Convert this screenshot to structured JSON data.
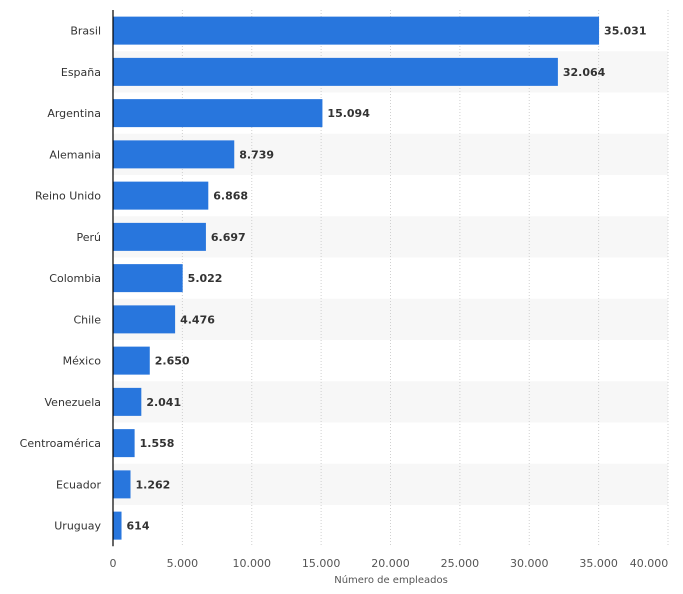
{
  "chart_data": {
    "type": "bar",
    "orientation": "horizontal",
    "categories": [
      "Brasil",
      "España",
      "Argentina",
      "Alemania",
      "Reino Unido",
      "Perú",
      "Colombia",
      "Chile",
      "México",
      "Venezuela",
      "Centroamérica",
      "Ecuador",
      "Uruguay"
    ],
    "values": [
      35031,
      32064,
      15094,
      8739,
      6868,
      6697,
      5022,
      4476,
      2650,
      2041,
      1558,
      1262,
      614
    ],
    "value_labels": [
      "35.031",
      "32.064",
      "15.094",
      "8.739",
      "6.868",
      "6.697",
      "5.022",
      "4.476",
      "2.650",
      "2.041",
      "1.558",
      "1.262",
      "614"
    ],
    "xlabel": "Número de empleados",
    "ylabel": "",
    "xlim": [
      0,
      40000
    ],
    "x_ticks": [
      0,
      5000,
      10000,
      15000,
      20000,
      25000,
      30000,
      35000,
      40000
    ],
    "x_tick_labels": [
      "0",
      "5.000",
      "10.000",
      "15.000",
      "20.000",
      "25.000",
      "30.000",
      "35.000",
      "40.000"
    ],
    "grid": "vertical dotted",
    "colors": {
      "bar": "#2876dd",
      "stripe": "#f7f7f7",
      "grid": "#d0d0d0"
    }
  }
}
